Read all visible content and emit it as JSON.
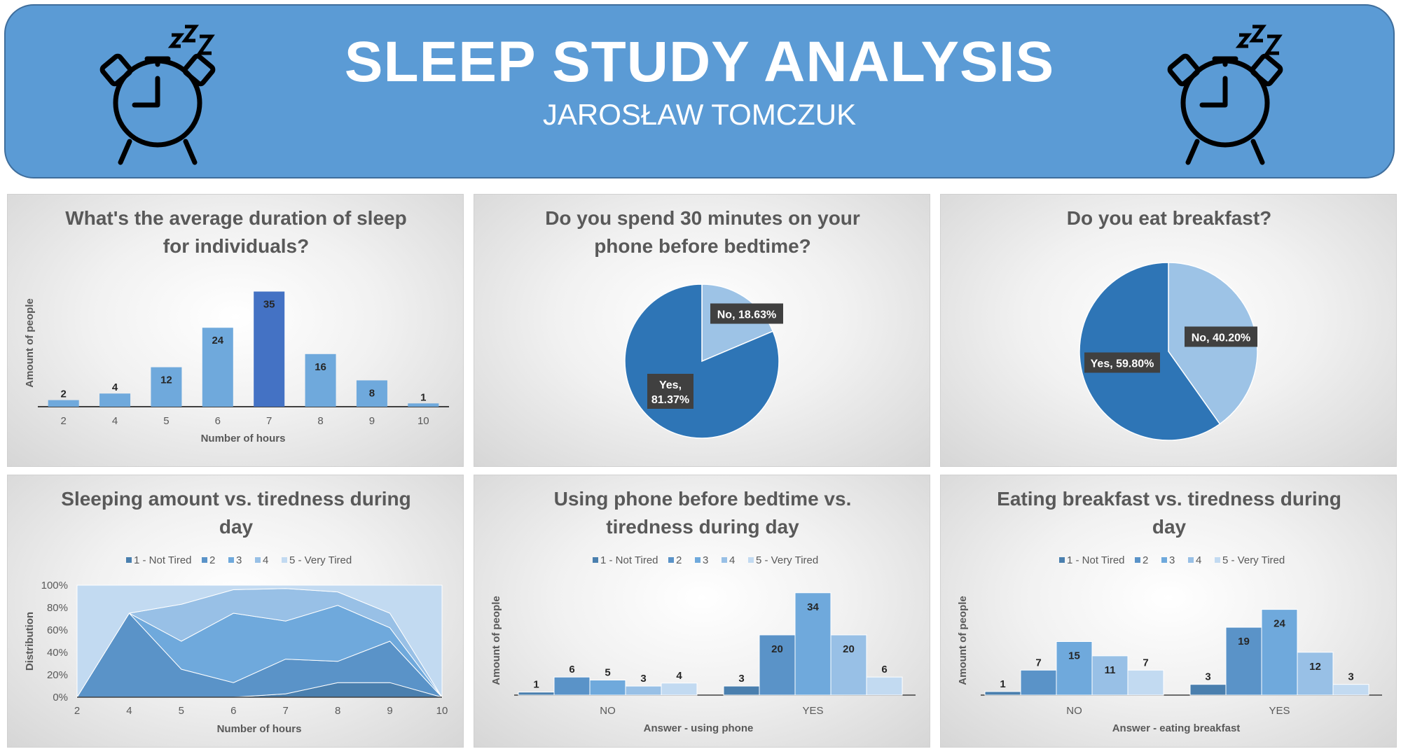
{
  "header": {
    "title": "SLEEP STUDY ANALYSIS",
    "author": "JAROSŁAW TOMCZUK"
  },
  "icons": {
    "clock": "alarm-clock-icon",
    "zzz": "zzz"
  },
  "colors": {
    "banner": "#5b9bd5",
    "t1": "#4a7fae",
    "t2": "#5a93c8",
    "t3": "#6fa9dc",
    "t4": "#98c0e6",
    "t5": "#c2daf1",
    "bar": "#6fa9dc",
    "bar_highlight": "#4472c4",
    "pie_yes": "#2e75b6",
    "pie_no": "#9dc3e6"
  },
  "legend_levels": [
    "1 - Not Tired",
    "2",
    "3",
    "4",
    "5 - Very Tired"
  ],
  "chart_data": [
    {
      "id": "sleep-duration",
      "type": "bar",
      "title_lines": [
        "What's the average duration of sleep",
        "for individuals?"
      ],
      "categories": [
        "2",
        "4",
        "5",
        "6",
        "7",
        "8",
        "9",
        "10"
      ],
      "values": [
        2,
        4,
        12,
        24,
        35,
        16,
        8,
        1
      ],
      "highlight_index": 4,
      "xlabel": "Number of hours",
      "ylabel": "Amount of people",
      "ylim": [
        0,
        40
      ]
    },
    {
      "id": "phone-pie",
      "type": "pie",
      "title_lines": [
        "Do you spend 30 minutes on your",
        "phone before bedtime?"
      ],
      "slices": [
        {
          "name": "No",
          "value": 18.63,
          "label": "No, 18.63%"
        },
        {
          "name": "Yes",
          "value": 81.37,
          "label_lines": [
            "Yes,",
            "81.37%"
          ]
        }
      ]
    },
    {
      "id": "breakfast-pie",
      "type": "pie",
      "title_lines": [
        "Do you eat breakfast?"
      ],
      "slices": [
        {
          "name": "No",
          "value": 40.2,
          "label": "No, 40.20%"
        },
        {
          "name": "Yes",
          "value": 59.8,
          "label": "Yes, 59.80%"
        }
      ]
    },
    {
      "id": "sleep-vs-tiredness",
      "type": "area",
      "stacked_percent": true,
      "title_lines": [
        "Sleeping amount vs. tiredness during",
        "day"
      ],
      "x": [
        "2",
        "4",
        "5",
        "6",
        "7",
        "8",
        "9",
        "10"
      ],
      "series": [
        {
          "name": "1 - Not Tired",
          "values": [
            0,
            0,
            0,
            0,
            3,
            13,
            13,
            0
          ]
        },
        {
          "name": "2",
          "values": [
            0,
            75,
            25,
            13,
            31,
            19,
            37,
            0
          ]
        },
        {
          "name": "3",
          "values": [
            0,
            0,
            25,
            62,
            34,
            50,
            12,
            0
          ]
        },
        {
          "name": "4",
          "values": [
            0,
            0,
            33,
            21,
            29,
            12,
            13,
            0
          ]
        },
        {
          "name": "5 - Very Tired",
          "values": [
            100,
            25,
            17,
            4,
            3,
            6,
            25,
            100
          ]
        }
      ],
      "yticks": [
        "0%",
        "20%",
        "40%",
        "60%",
        "80%",
        "100%"
      ],
      "xlabel": "Number of hours",
      "ylabel": "Distribution"
    },
    {
      "id": "phone-vs-tiredness",
      "type": "bar",
      "title_lines": [
        "Using phone before bedtime vs.",
        "tiredness during day"
      ],
      "categories": [
        "NO",
        "YES"
      ],
      "series": [
        {
          "name": "1 - Not Tired",
          "values": [
            1,
            3
          ]
        },
        {
          "name": "2",
          "values": [
            6,
            20
          ]
        },
        {
          "name": "3",
          "values": [
            5,
            34
          ]
        },
        {
          "name": "4",
          "values": [
            3,
            20
          ]
        },
        {
          "name": "5 - Very Tired",
          "values": [
            4,
            6
          ]
        }
      ],
      "xlabel": "Answer - using phone",
      "ylabel": "Amount of people",
      "ylim": [
        0,
        40
      ]
    },
    {
      "id": "breakfast-vs-tiredness",
      "type": "bar",
      "title_lines": [
        "Eating breakfast vs. tiredness during",
        "day"
      ],
      "categories": [
        "NO",
        "YES"
      ],
      "series": [
        {
          "name": "1 - Not Tired",
          "values": [
            1,
            3
          ]
        },
        {
          "name": "2",
          "values": [
            7,
            19
          ]
        },
        {
          "name": "3",
          "values": [
            15,
            24
          ]
        },
        {
          "name": "4",
          "values": [
            11,
            12
          ]
        },
        {
          "name": "5 - Very Tired",
          "values": [
            7,
            3
          ]
        }
      ],
      "xlabel": "Answer - eating breakfast",
      "ylabel": "Amount of people",
      "ylim": [
        0,
        30
      ]
    }
  ]
}
